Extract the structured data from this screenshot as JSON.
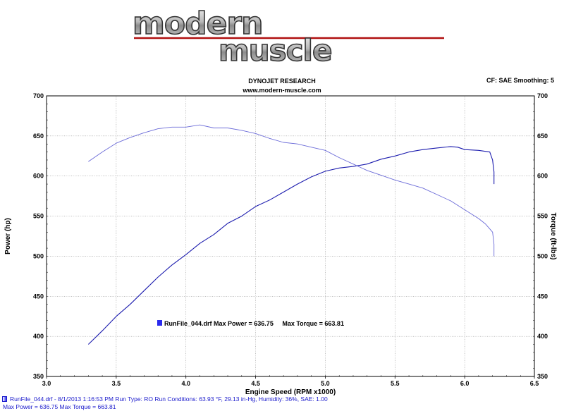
{
  "logo": {
    "line1": "modern",
    "line2": "muscle"
  },
  "header": {
    "title": "DYNOJET RESEARCH",
    "subtitle": "www.modern-muscle.com",
    "cf_info": "CF: SAE  Smoothing: 5"
  },
  "chart_data": {
    "type": "line",
    "xlabel": "Engine Speed (RPM x1000)",
    "ylabel_left": "Power (hp)",
    "ylabel_right": "Torque (ft-lbs)",
    "xlim": [
      3.0,
      6.5
    ],
    "ylim_left": [
      350,
      700
    ],
    "ylim_right": [
      350,
      700
    ],
    "x_ticks": [
      "3.0",
      "3.5",
      "4.0",
      "4.5",
      "5.0",
      "5.5",
      "6.0",
      "6.5"
    ],
    "y_ticks": [
      "350",
      "400",
      "450",
      "500",
      "550",
      "600",
      "650",
      "700"
    ],
    "grid": true,
    "series": [
      {
        "axis": "left",
        "color": "#1c1cae",
        "points": [
          [
            3.3,
            390
          ],
          [
            3.4,
            407
          ],
          [
            3.5,
            425
          ],
          [
            3.6,
            440
          ],
          [
            3.7,
            457
          ],
          [
            3.8,
            474
          ],
          [
            3.9,
            489
          ],
          [
            4.0,
            502
          ],
          [
            4.1,
            516
          ],
          [
            4.2,
            527
          ],
          [
            4.3,
            541
          ],
          [
            4.4,
            550
          ],
          [
            4.5,
            562
          ],
          [
            4.6,
            570
          ],
          [
            4.7,
            580
          ],
          [
            4.8,
            590
          ],
          [
            4.9,
            599
          ],
          [
            5.0,
            606
          ],
          [
            5.1,
            610
          ],
          [
            5.2,
            612
          ],
          [
            5.3,
            615
          ],
          [
            5.4,
            621
          ],
          [
            5.5,
            625
          ],
          [
            5.6,
            630
          ],
          [
            5.7,
            633
          ],
          [
            5.8,
            635
          ],
          [
            5.9,
            636.75
          ],
          [
            5.95,
            636
          ],
          [
            6.0,
            633
          ],
          [
            6.1,
            632
          ],
          [
            6.18,
            630
          ],
          [
            6.2,
            620
          ],
          [
            6.21,
            605
          ],
          [
            6.21,
            590
          ]
        ]
      },
      {
        "axis": "right",
        "color": "#6b6bd8",
        "points": [
          [
            3.3,
            618
          ],
          [
            3.4,
            630
          ],
          [
            3.5,
            641
          ],
          [
            3.6,
            648
          ],
          [
            3.7,
            654
          ],
          [
            3.8,
            659
          ],
          [
            3.9,
            661
          ],
          [
            4.0,
            661
          ],
          [
            4.1,
            663.81
          ],
          [
            4.2,
            660
          ],
          [
            4.3,
            660
          ],
          [
            4.4,
            657
          ],
          [
            4.5,
            653
          ],
          [
            4.6,
            647
          ],
          [
            4.7,
            642
          ],
          [
            4.8,
            640
          ],
          [
            4.9,
            636
          ],
          [
            5.0,
            632
          ],
          [
            5.1,
            623
          ],
          [
            5.2,
            615
          ],
          [
            5.3,
            607
          ],
          [
            5.4,
            601
          ],
          [
            5.5,
            595
          ],
          [
            5.6,
            590
          ],
          [
            5.7,
            585
          ],
          [
            5.8,
            577
          ],
          [
            5.9,
            569
          ],
          [
            6.0,
            558
          ],
          [
            6.1,
            547
          ],
          [
            6.15,
            540
          ],
          [
            6.2,
            530
          ],
          [
            6.21,
            515
          ],
          [
            6.21,
            500
          ]
        ]
      }
    ],
    "legend": {
      "text": "RunFile_044.drf Max Power = 636.75     Max Torque = 663.81",
      "marker_color": "#2a2aee"
    }
  },
  "footer": {
    "line1": "RunFile_044.drf - 8/1/2013 1:16:53 PM  Run Type: RO  Run Conditions: 63.93 °F, 29.13 in-Hg,  Humidity:  36%, SAE: 1.00",
    "line2": "Max Power = 636.75  Max Torque = 663.81"
  }
}
